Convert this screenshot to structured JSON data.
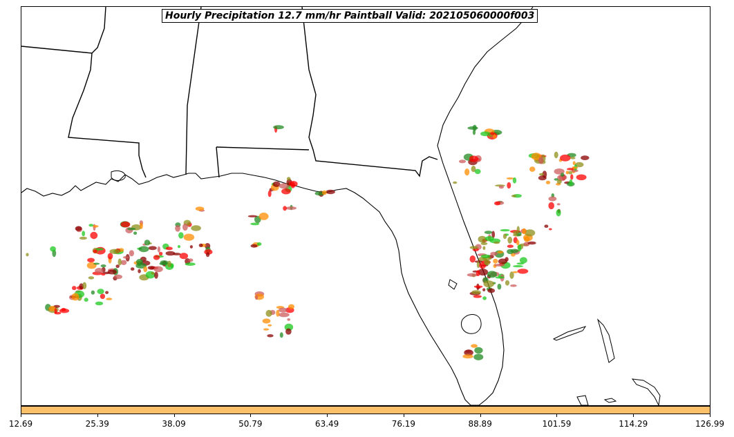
{
  "title": "Hourly Precipitation 12.7 mm/hr Paintball Valid: 202105060000f003",
  "colors": {
    "colorbar": "#fcc06a",
    "coast": "#000000",
    "paintball_palette": [
      "#ff0000",
      "#ff8c00",
      "#1ec81e",
      "#8b0000",
      "#8f8f1a",
      "#228b22",
      "#cd5c5c"
    ]
  },
  "colorbar": {
    "tick_labels": [
      "12.69",
      "25.39",
      "38.09",
      "50.79",
      "63.49",
      "76.19",
      "88.89",
      "101.59",
      "114.29",
      "126.99"
    ]
  }
}
